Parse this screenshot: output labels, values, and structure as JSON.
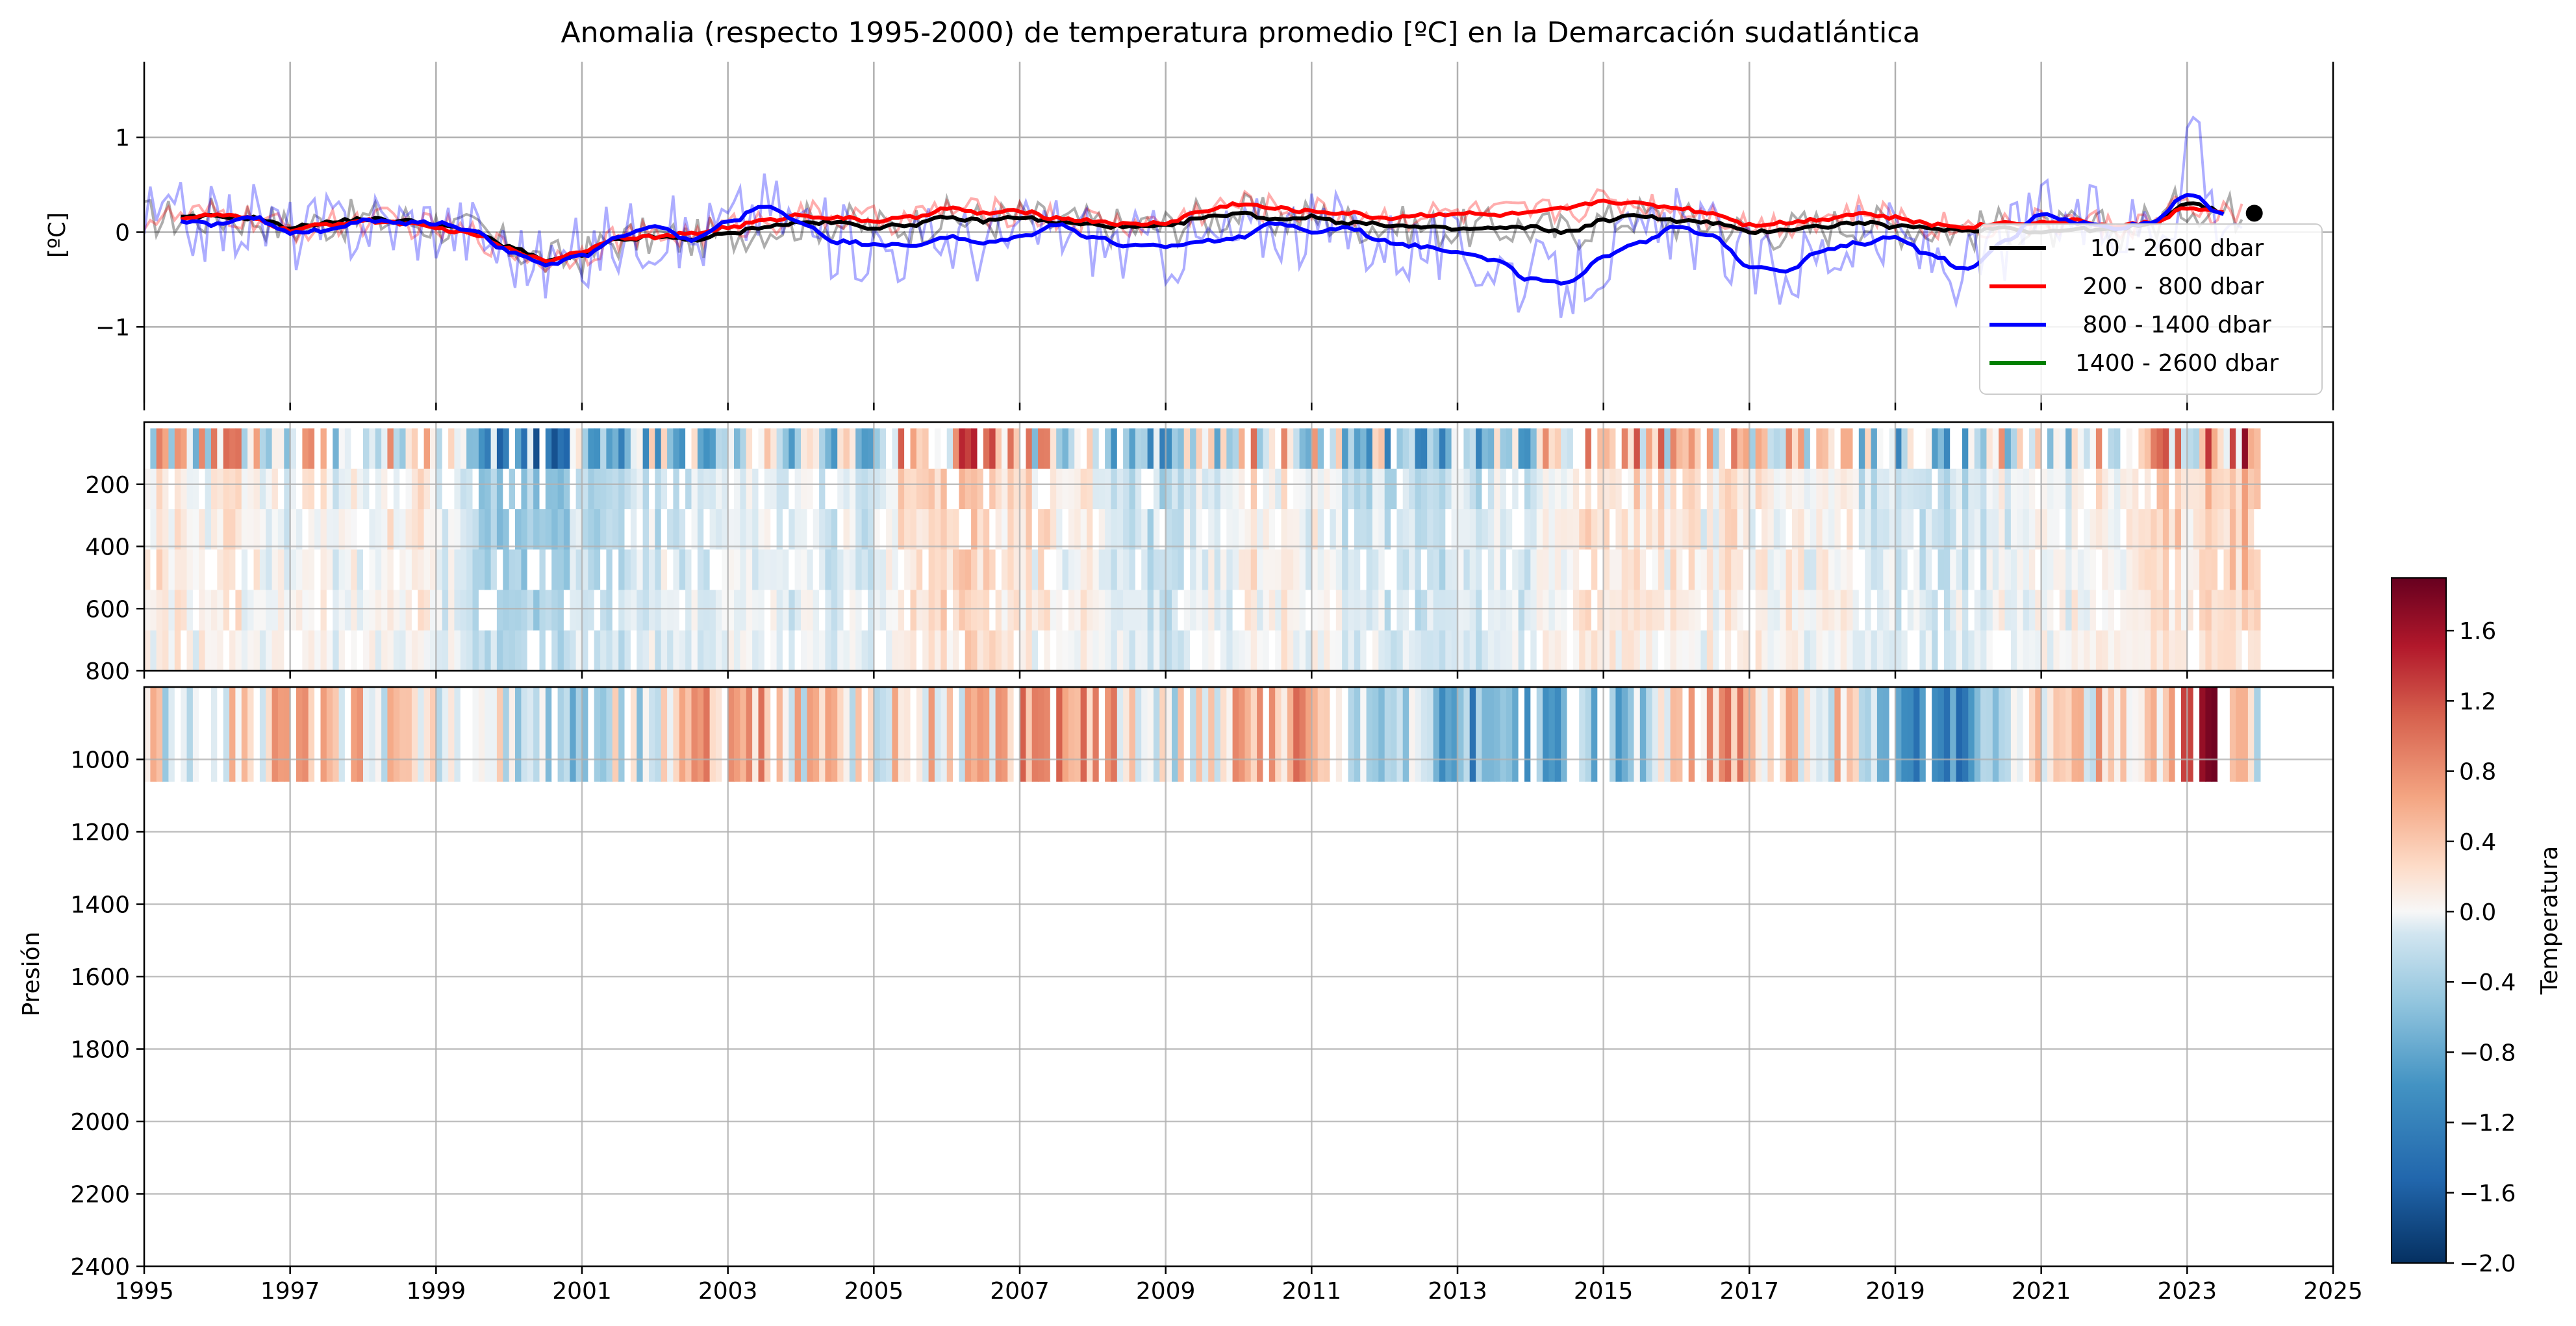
{
  "title": "Anomalia (respecto 1995-2000) de temperatura promedio [ºC] en la Demarcación sudatlántica",
  "chart_data": [
    {
      "type": "line",
      "ylabel": "[ºC]",
      "xlim": [
        1995,
        2025
      ],
      "ylim": [
        -1.8,
        1.8
      ],
      "yticks": [
        -1,
        0,
        1
      ],
      "ytick_labels": [
        "−1",
        "0",
        "1"
      ],
      "grid": true,
      "legend_position": "right",
      "series": [
        {
          "name": "  10 - 2600 dbar",
          "color": "#000000",
          "x": [
            1995.5,
            1996.0,
            1996.5,
            1997.0,
            1997.5,
            1998.0,
            1998.5,
            1999.0,
            1999.5,
            2000.0,
            2000.5,
            2001.0,
            2001.5,
            2002.0,
            2002.5,
            2003.0,
            2003.5,
            2004.0,
            2004.5,
            2005.0,
            2005.5,
            2006.0,
            2006.5,
            2007.0,
            2007.5,
            2008.0,
            2008.5,
            2009.0,
            2009.5,
            2010.0,
            2010.5,
            2011.0,
            2011.5,
            2012.0,
            2012.5,
            2013.0,
            2013.5,
            2014.0,
            2014.5,
            2015.0,
            2015.5,
            2016.0,
            2016.5,
            2017.0,
            2017.5,
            2018.0,
            2018.5,
            2019.0,
            2019.5,
            2020.0,
            2020.5,
            2021.0,
            2021.5,
            2022.0,
            2022.5,
            2023.0,
            2023.5
          ],
          "y": [
            0.15,
            0.17,
            0.15,
            0.05,
            0.1,
            0.14,
            0.12,
            0.08,
            0.0,
            -0.15,
            -0.3,
            -0.25,
            -0.08,
            -0.05,
            -0.08,
            -0.02,
            0.06,
            0.1,
            0.1,
            0.05,
            0.08,
            0.15,
            0.12,
            0.16,
            0.1,
            0.08,
            0.05,
            0.06,
            0.15,
            0.2,
            0.14,
            0.16,
            0.1,
            0.08,
            0.05,
            0.03,
            0.04,
            0.05,
            0.0,
            0.12,
            0.18,
            0.12,
            0.1,
            0.0,
            0.03,
            0.06,
            0.1,
            0.06,
            0.04,
            0.02,
            0.05,
            0.0,
            0.03,
            0.02,
            0.1,
            0.3,
            0.22
          ]
        },
        {
          "name": " 200 -  800 dbar",
          "color": "#ff0000",
          "x": [
            1995.5,
            1996.0,
            1996.5,
            1997.0,
            1997.5,
            1998.0,
            1998.5,
            1999.0,
            1999.5,
            2000.0,
            2000.5,
            2001.0,
            2001.5,
            2002.0,
            2002.5,
            2003.0,
            2003.5,
            2004.0,
            2004.5,
            2005.0,
            2005.5,
            2006.0,
            2006.5,
            2007.0,
            2007.5,
            2008.0,
            2008.5,
            2009.0,
            2009.5,
            2010.0,
            2010.5,
            2011.0,
            2011.5,
            2012.0,
            2012.5,
            2013.0,
            2013.5,
            2014.0,
            2014.5,
            2015.0,
            2015.5,
            2016.0,
            2016.5,
            2017.0,
            2017.5,
            2018.0,
            2018.5,
            2019.0,
            2019.5,
            2020.0,
            2020.5,
            2021.0,
            2021.5,
            2022.0,
            2022.5,
            2023.0,
            2023.5
          ],
          "y": [
            0.15,
            0.18,
            0.14,
            0.02,
            0.08,
            0.12,
            0.1,
            0.04,
            -0.02,
            -0.18,
            -0.3,
            -0.2,
            -0.05,
            -0.05,
            -0.02,
            0.05,
            0.12,
            0.18,
            0.15,
            0.12,
            0.15,
            0.25,
            0.2,
            0.22,
            0.15,
            0.12,
            0.08,
            0.1,
            0.22,
            0.3,
            0.25,
            0.22,
            0.2,
            0.15,
            0.18,
            0.2,
            0.18,
            0.2,
            0.25,
            0.33,
            0.3,
            0.26,
            0.2,
            0.08,
            0.1,
            0.14,
            0.2,
            0.15,
            0.08,
            0.06,
            0.1,
            0.1,
            0.12,
            0.06,
            0.1,
            0.25,
            0.2
          ]
        },
        {
          "name": " 800 - 1400 dbar",
          "color": "#0000ff",
          "x": [
            1995.5,
            1996.0,
            1996.5,
            1997.0,
            1997.5,
            1998.0,
            1998.5,
            1999.0,
            1999.5,
            2000.0,
            2000.5,
            2001.0,
            2001.5,
            2002.0,
            2002.5,
            2003.0,
            2003.5,
            2004.0,
            2004.5,
            2005.0,
            2005.5,
            2006.0,
            2006.5,
            2007.0,
            2007.5,
            2008.0,
            2008.5,
            2009.0,
            2009.5,
            2010.0,
            2010.5,
            2011.0,
            2011.5,
            2012.0,
            2012.5,
            2013.0,
            2013.5,
            2014.0,
            2014.5,
            2015.0,
            2015.5,
            2016.0,
            2016.5,
            2017.0,
            2017.5,
            2018.0,
            2018.5,
            2019.0,
            2019.5,
            2020.0,
            2020.5,
            2021.0,
            2021.5,
            2022.0,
            2022.5,
            2023.0,
            2023.5
          ],
          "y": [
            0.12,
            0.08,
            0.15,
            0.0,
            0.02,
            0.12,
            0.1,
            0.1,
            0.02,
            -0.2,
            -0.35,
            -0.25,
            -0.05,
            0.05,
            -0.08,
            0.1,
            0.28,
            0.1,
            -0.1,
            -0.12,
            -0.15,
            -0.05,
            -0.12,
            -0.05,
            0.08,
            -0.05,
            -0.15,
            -0.15,
            -0.1,
            -0.05,
            0.1,
            0.0,
            0.05,
            -0.1,
            -0.15,
            -0.2,
            -0.3,
            -0.5,
            -0.55,
            -0.25,
            -0.1,
            0.05,
            -0.05,
            -0.35,
            -0.4,
            -0.2,
            -0.12,
            -0.05,
            -0.25,
            -0.4,
            -0.1,
            0.2,
            0.1,
            0.05,
            0.1,
            0.4,
            0.2
          ]
        },
        {
          "name": "1400 - 2600 dbar",
          "color": "#008000",
          "x": [],
          "y": []
        }
      ],
      "last_point": {
        "x": 2023.92,
        "y": 0.2,
        "color": "#000000"
      }
    },
    {
      "type": "heatmap",
      "xlim": [
        1995,
        2025
      ],
      "ylim": [
        800,
        0
      ],
      "yticks": [
        200,
        400,
        600,
        800
      ],
      "ytick_labels": [
        "200",
        "400",
        "600",
        "800"
      ],
      "data_extent": {
        "x": [
          1995,
          2023.95
        ],
        "y": [
          20,
          800
        ]
      },
      "anomaly_band": {
        "x": [
          1995.5,
          1997.0,
          1998.5,
          2000.0,
          2001.5,
          2003.0,
          2004.5,
          2006.0,
          2007.5,
          2009.0,
          2010.5,
          2012.0,
          2013.5,
          2015.0,
          2016.5,
          2018.0,
          2019.5,
          2021.0,
          2022.5,
          2023.9
        ],
        "values": [
          0.1,
          0.0,
          0.1,
          -0.6,
          -0.3,
          0.0,
          -0.2,
          0.4,
          0.1,
          -0.3,
          0.1,
          -0.3,
          -0.2,
          0.2,
          0.1,
          0.0,
          -0.3,
          0.0,
          0.2,
          0.5
        ]
      }
    },
    {
      "type": "heatmap",
      "xlim": [
        1995,
        2025
      ],
      "ylim": [
        2400,
        800
      ],
      "xticks": [
        1995,
        1997,
        1999,
        2001,
        2003,
        2005,
        2007,
        2009,
        2011,
        2013,
        2015,
        2017,
        2019,
        2021,
        2023,
        2025
      ],
      "xtick_labels": [
        "1995",
        "1997",
        "1999",
        "2001",
        "2003",
        "2005",
        "2007",
        "2009",
        "2011",
        "2013",
        "2015",
        "2017",
        "2019",
        "2021",
        "2023",
        "2025"
      ],
      "yticks": [
        1000,
        1200,
        1400,
        1600,
        1800,
        2000,
        2200,
        2400
      ],
      "ytick_labels": [
        "1000",
        "1200",
        "1400",
        "1600",
        "1800",
        "2000",
        "2200",
        "2400"
      ],
      "ylabel": "Presión",
      "data_extent": {
        "x": [
          1995,
          2023.95
        ],
        "y": [
          800,
          1060
        ]
      },
      "anomaly_band": {
        "x": [
          1995.5,
          1997.0,
          1998.5,
          2000.0,
          2001.5,
          2003.0,
          2004.5,
          2006.0,
          2007.5,
          2009.0,
          2010.5,
          2012.0,
          2013.5,
          2015.0,
          2016.5,
          2018.0,
          2019.5,
          2021.0,
          2022.5,
          2023.2,
          2023.9
        ],
        "values": [
          0.1,
          0.3,
          0.1,
          -0.3,
          -0.2,
          0.6,
          0.1,
          0.2,
          0.7,
          0.0,
          0.5,
          -0.2,
          -0.9,
          -0.6,
          0.5,
          0.2,
          -1.2,
          0.3,
          0.2,
          1.6,
          0.1
        ]
      }
    },
    {
      "type": "colorbar",
      "label": "Temperatura",
      "range": [
        -2.0,
        1.9
      ],
      "ticks": [
        -2.0,
        -1.6,
        -1.2,
        -0.8,
        -0.4,
        0.0,
        0.4,
        0.8,
        1.2,
        1.6
      ],
      "tick_labels": [
        "−2.0",
        "−1.6",
        "−1.2",
        "−0.8",
        "−0.4",
        "0.0",
        "0.4",
        "0.8",
        "1.2",
        "1.6"
      ],
      "colormap": "RdBu_r"
    }
  ]
}
